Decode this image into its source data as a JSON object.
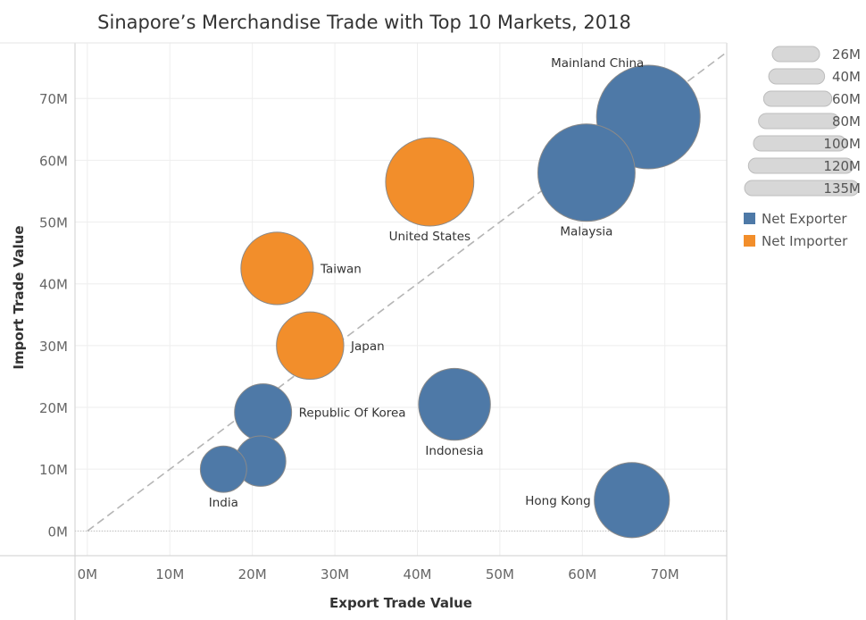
{
  "chart_data": {
    "type": "scatter",
    "title": "Sinapore’s Merchandise Trade with  Top 10 Markets, 2018",
    "xlabel": "Export Trade Value",
    "ylabel": "Import Trade Value",
    "xlim": [
      -1.5,
      77.5
    ],
    "ylim": [
      -4,
      79
    ],
    "x_ticks": [
      0,
      10,
      20,
      30,
      40,
      50,
      60,
      70
    ],
    "x_tick_labels": [
      "0M",
      "10M",
      "20M",
      "30M",
      "40M",
      "50M",
      "60M",
      "70M"
    ],
    "y_ticks": [
      0,
      10,
      20,
      30,
      40,
      50,
      60,
      70
    ],
    "y_tick_labels": [
      "0M",
      "10M",
      "20M",
      "30M",
      "40M",
      "50M",
      "60M",
      "70M"
    ],
    "grid": true,
    "reference_line": "x = y",
    "legend_position": "right",
    "color_legend": [
      {
        "label": "Net Exporter",
        "color": "#4e79a7"
      },
      {
        "label": "Net Importer",
        "color": "#f28e2b"
      }
    ],
    "size_legend": {
      "values": [
        26,
        40,
        60,
        80,
        100,
        120,
        135
      ],
      "labels": [
        "26M",
        "40M",
        "60M",
        "80M",
        "100M",
        "120M",
        "135M"
      ]
    },
    "points": [
      {
        "label": "Mainland China",
        "x": 68,
        "y": 67,
        "total": 135,
        "group": "Net Exporter",
        "label_pos": "top-left"
      },
      {
        "label": "Malaysia",
        "x": 60.5,
        "y": 58,
        "total": 119,
        "group": "Net Exporter",
        "label_pos": "bottom"
      },
      {
        "label": "United States",
        "x": 41.5,
        "y": 56.5,
        "total": 98,
        "group": "Net Importer",
        "label_pos": "bottom"
      },
      {
        "label": "Taiwan",
        "x": 23,
        "y": 42.5,
        "total": 66,
        "group": "Net Importer",
        "label_pos": "right"
      },
      {
        "label": "Japan",
        "x": 27,
        "y": 30,
        "total": 57,
        "group": "Net Importer",
        "label_pos": "right"
      },
      {
        "label": "Republic Of Korea",
        "x": 21.3,
        "y": 19.2,
        "total": 41,
        "group": "Net Exporter",
        "label_pos": "right"
      },
      {
        "label": "Indonesia",
        "x": 44.5,
        "y": 20.5,
        "total": 65,
        "group": "Net Exporter",
        "label_pos": "bottom"
      },
      {
        "label": "",
        "x": 21,
        "y": 11.3,
        "total": 32,
        "group": "Net Exporter",
        "label_pos": "none"
      },
      {
        "label": "India",
        "x": 16.5,
        "y": 10,
        "total": 27,
        "group": "Net Exporter",
        "label_pos": "bottom"
      },
      {
        "label": "Hong Kong",
        "x": 66,
        "y": 5,
        "total": 71,
        "group": "Net Exporter",
        "label_pos": "left"
      }
    ]
  }
}
